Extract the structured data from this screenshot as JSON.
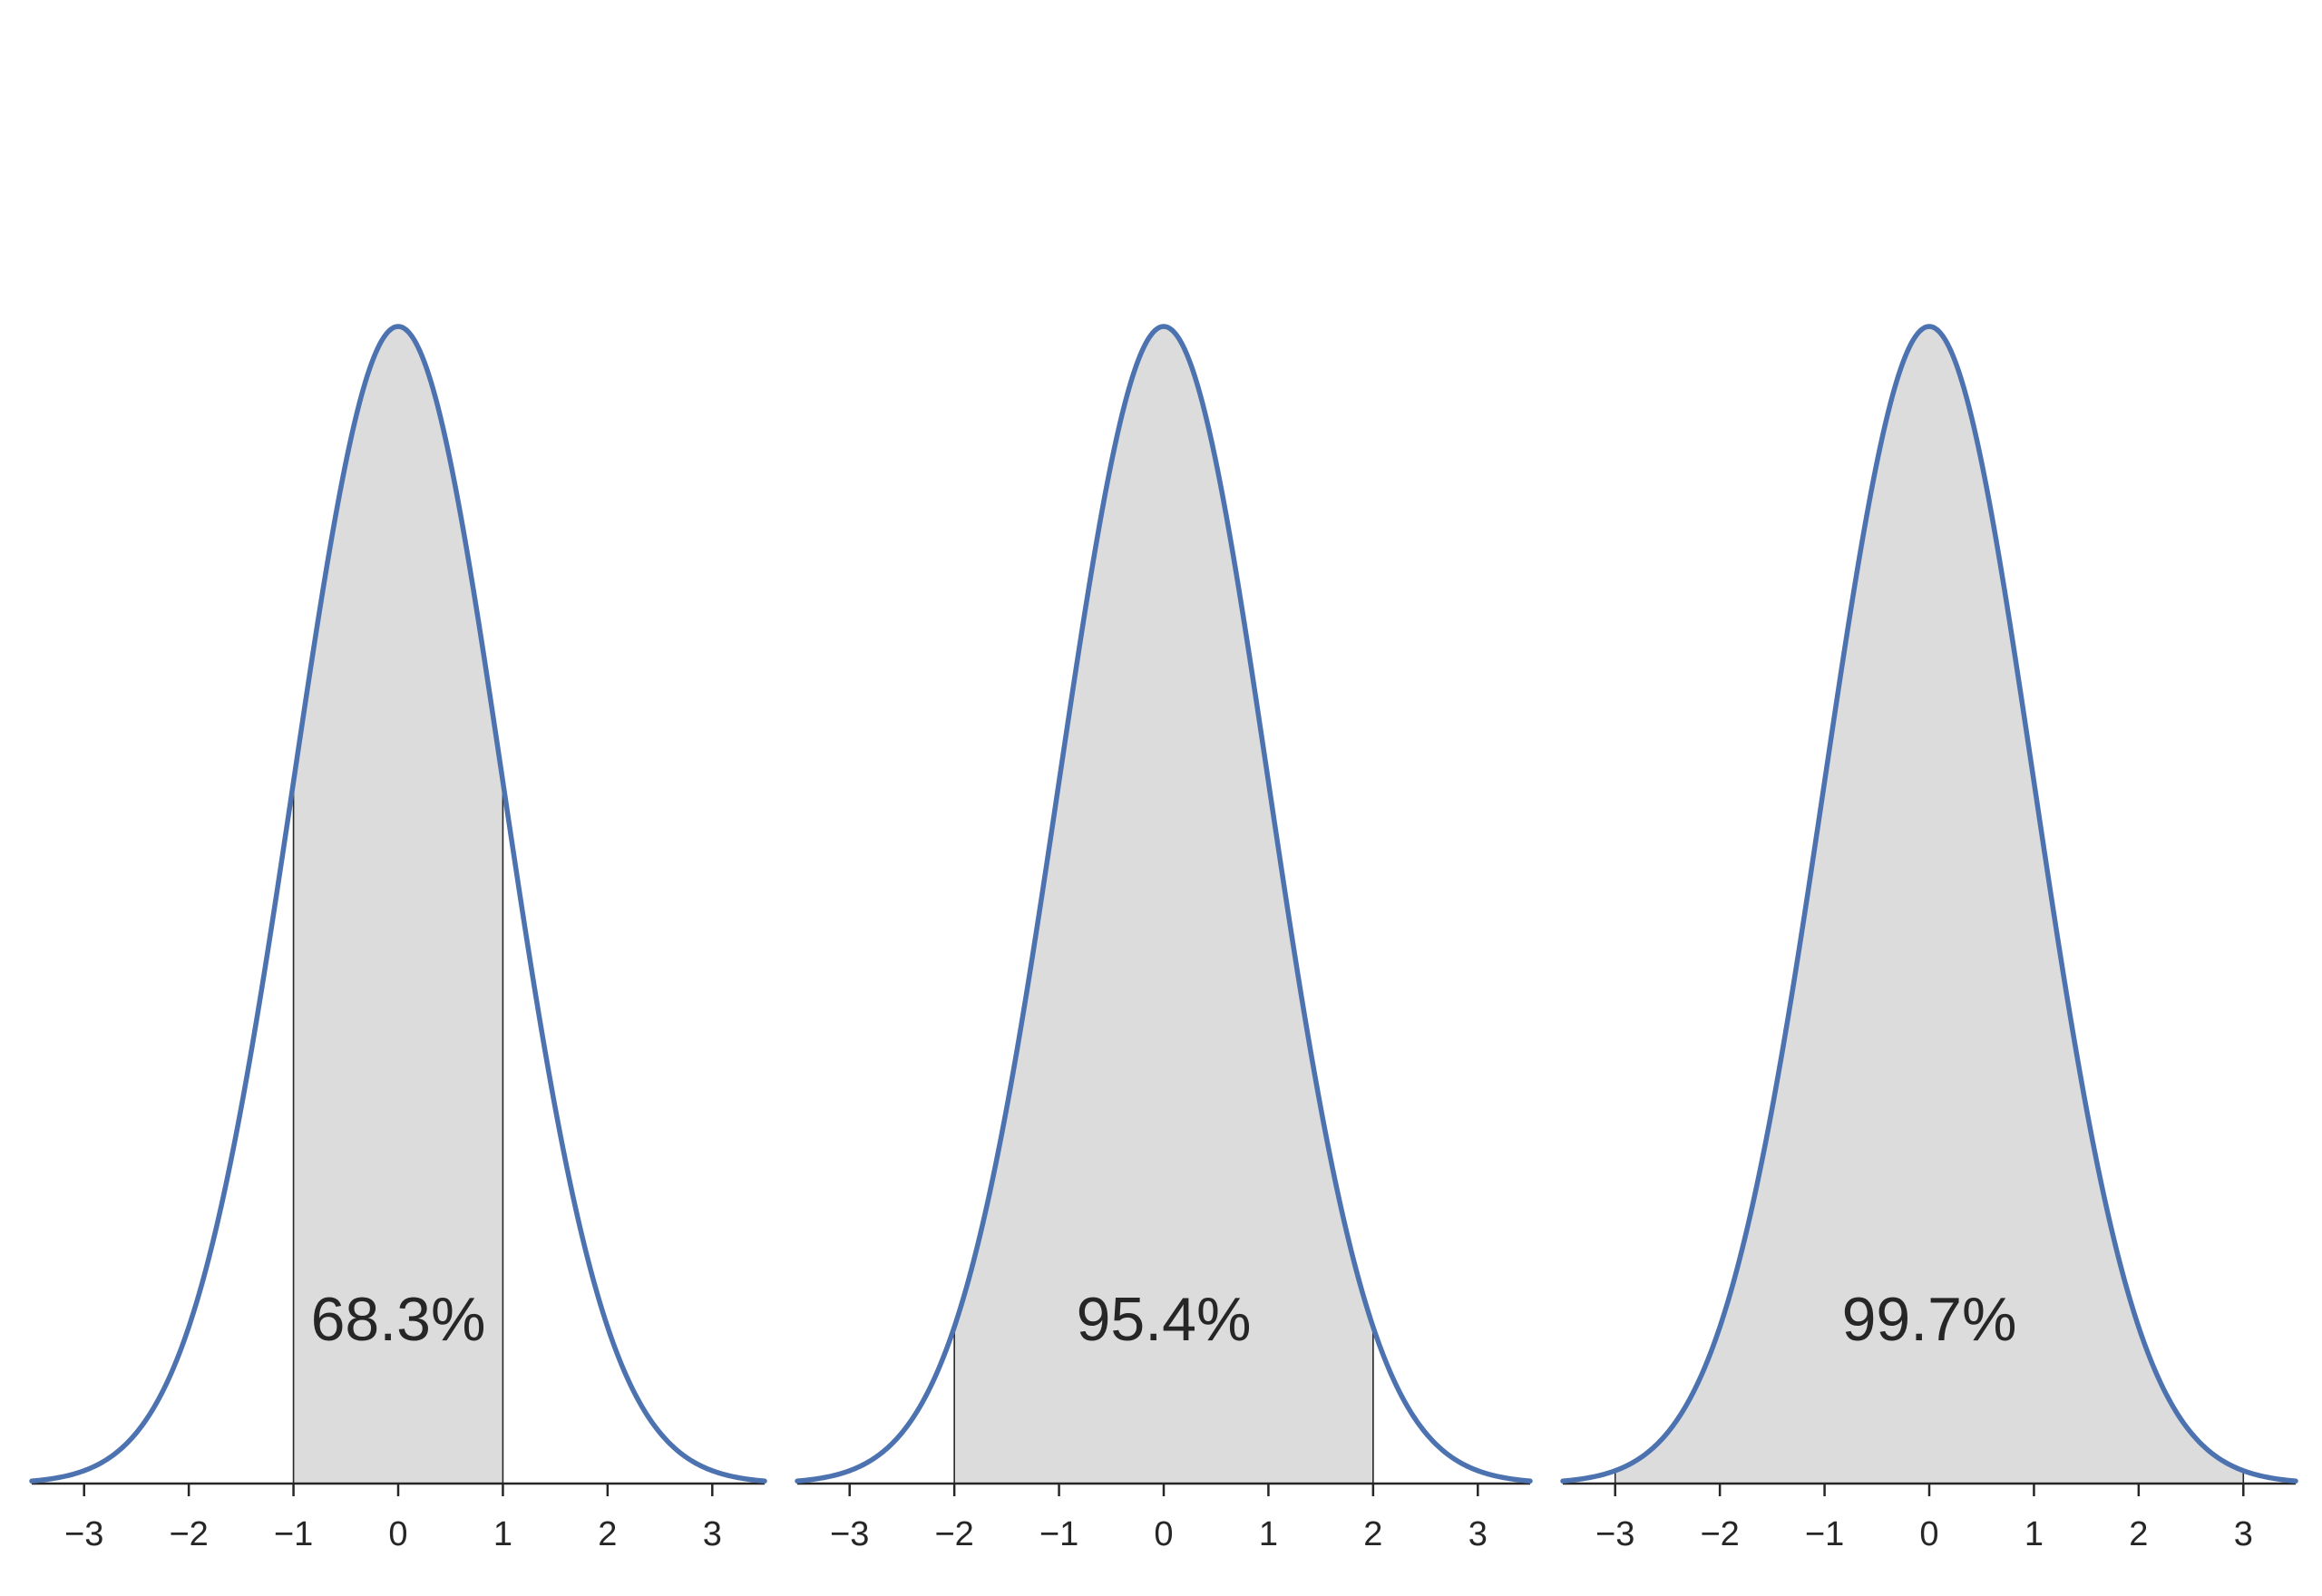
{
  "chart_data": [
    {
      "type": "area",
      "distribution": "standard normal",
      "shade_range": [
        -1,
        1
      ],
      "annotation": "68.3%",
      "xlim": [
        -3.5,
        3.5
      ],
      "xticks": [
        -3,
        -2,
        -1,
        0,
        1,
        2,
        3
      ],
      "xtick_labels": [
        "−3",
        "−2",
        "−1",
        "0",
        "1",
        "2",
        "3"
      ],
      "title": "",
      "xlabel": "",
      "ylabel": ""
    },
    {
      "type": "area",
      "distribution": "standard normal",
      "shade_range": [
        -2,
        2
      ],
      "annotation": "95.4%",
      "xlim": [
        -3.5,
        3.5
      ],
      "xticks": [
        -3,
        -2,
        -1,
        0,
        1,
        2,
        3
      ],
      "xtick_labels": [
        "−3",
        "−2",
        "−1",
        "0",
        "1",
        "2",
        "3"
      ],
      "title": "",
      "xlabel": "",
      "ylabel": ""
    },
    {
      "type": "area",
      "distribution": "standard normal",
      "shade_range": [
        -3,
        3
      ],
      "annotation": "99.7%",
      "xlim": [
        -3.5,
        3.5
      ],
      "xticks": [
        -3,
        -2,
        -1,
        0,
        1,
        2,
        3
      ],
      "xtick_labels": [
        "−3",
        "−2",
        "−1",
        "0",
        "1",
        "2",
        "3"
      ],
      "title": "",
      "xlabel": "",
      "ylabel": ""
    }
  ],
  "colors": {
    "curve": "#4c72b0",
    "shade": "#dcdcdd",
    "axis": "#262626",
    "boundary": "#262626"
  }
}
